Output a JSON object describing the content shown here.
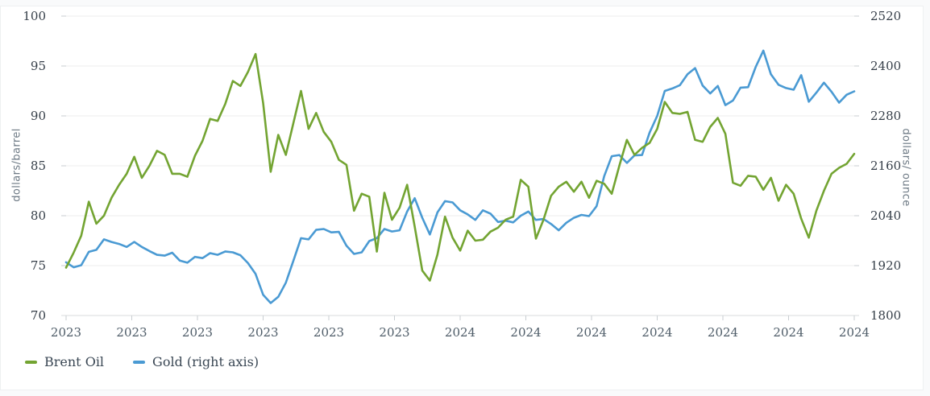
{
  "chart_data": {
    "type": "line",
    "title": "",
    "grid": "horizontal",
    "legend_position": "bottom-left",
    "x_tick_labels": [
      "2023",
      "2023",
      "2023",
      "2023",
      "2023",
      "2023",
      "2024",
      "2024",
      "2024",
      "2024",
      "2024",
      "2024",
      "2024"
    ],
    "y_left": {
      "title": "dollars/barrel",
      "ticks": [
        100,
        95,
        90,
        85,
        80,
        75,
        70
      ],
      "range": [
        70,
        100
      ]
    },
    "y_right": {
      "title": "dollars/ ounce",
      "ticks": [
        2520,
        2400,
        2280,
        2160,
        2040,
        1920,
        1800
      ],
      "range": [
        1800,
        2520
      ]
    },
    "series": [
      {
        "name": "Gold (right axis)",
        "axis": "right",
        "color": "#4a9ad3",
        "values": [
          1928,
          1916,
          1921,
          1953,
          1958,
          1983,
          1977,
          1972,
          1965,
          1977,
          1965,
          1955,
          1946,
          1944,
          1951,
          1932,
          1927,
          1941,
          1938,
          1950,
          1946,
          1954,
          1952,
          1945,
          1926,
          1900,
          1850,
          1830,
          1845,
          1879,
          1932,
          1986,
          1983,
          2006,
          2008,
          2000,
          2001,
          1968,
          1948,
          1952,
          1979,
          1986,
          2008,
          2002,
          2005,
          2050,
          2082,
          2035,
          1995,
          2048,
          2075,
          2072,
          2053,
          2043,
          2030,
          2053,
          2045,
          2025,
          2028,
          2024,
          2040,
          2050,
          2030,
          2032,
          2020,
          2005,
          2023,
          2035,
          2042,
          2039,
          2063,
          2135,
          2183,
          2186,
          2167,
          2185,
          2186,
          2240,
          2280,
          2340,
          2346,
          2354,
          2380,
          2395,
          2353,
          2334,
          2352,
          2306,
          2317,
          2348,
          2349,
          2398,
          2437,
          2380,
          2355,
          2347,
          2343,
          2378,
          2314,
          2336,
          2360,
          2338,
          2312,
          2331,
          2339
        ]
      },
      {
        "name": "Brent Oil",
        "axis": "left",
        "color": "#73a432",
        "values": [
          74.8,
          76.3,
          78.0,
          81.4,
          79.2,
          80.0,
          81.8,
          83.1,
          84.2,
          85.9,
          83.8,
          85.0,
          86.5,
          86.1,
          84.2,
          84.2,
          83.9,
          86.0,
          87.5,
          89.7,
          89.5,
          91.2,
          93.5,
          93.0,
          94.4,
          96.2,
          91.3,
          84.4,
          88.1,
          86.1,
          89.3,
          92.5,
          88.7,
          90.3,
          88.4,
          87.4,
          85.6,
          85.1,
          80.5,
          82.2,
          81.9,
          76.4,
          82.3,
          79.6,
          80.8,
          83.1,
          78.9,
          74.5,
          73.5,
          76.1,
          79.9,
          77.8,
          76.5,
          78.5,
          77.5,
          77.6,
          78.4,
          78.8,
          79.6,
          79.9,
          83.6,
          82.9,
          77.7,
          79.6,
          82.0,
          82.9,
          83.4,
          82.4,
          83.4,
          81.8,
          83.5,
          83.2,
          82.2,
          85.0,
          87.6,
          86.1,
          86.8,
          87.3,
          88.7,
          91.4,
          90.3,
          90.2,
          90.4,
          87.6,
          87.4,
          88.9,
          89.8,
          88.2,
          83.3,
          83.0,
          84.0,
          83.9,
          82.6,
          83.8,
          81.5,
          83.1,
          82.2,
          79.7,
          77.8,
          80.5,
          82.5,
          84.2,
          84.8,
          85.2,
          86.2
        ]
      }
    ],
    "legend": [
      {
        "label": "Brent Oil",
        "color": "#73a432"
      },
      {
        "label": "Gold (right axis)",
        "color": "#4a9ad3"
      }
    ]
  }
}
